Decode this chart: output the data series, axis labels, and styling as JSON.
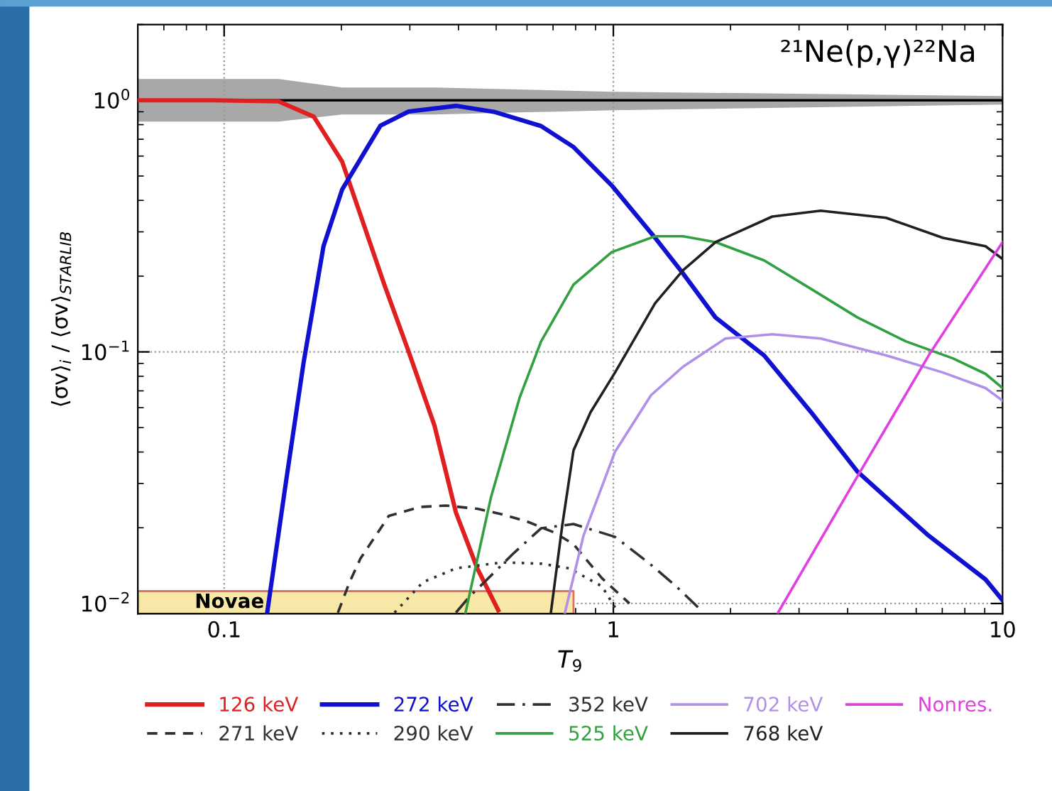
{
  "chart_data": {
    "type": "line",
    "title": "²¹Ne(p,γ)²²Na",
    "xlabel": "T$_{9}$",
    "ylabel": "⟨σv⟩$_{i}$ / ⟨σv⟩$_{STARLIB}$",
    "log": "xy",
    "grid": true,
    "legend": "bottom",
    "line_style": "solid",
    "marker": "none",
    "xlim": [
      0.06,
      10
    ],
    "ylim": [
      0.0091,
      2
    ],
    "xticks": [
      0.1,
      1,
      10
    ],
    "yticks": [
      {
        "value": 0.01,
        "label": "10$^{−2}$"
      },
      {
        "value": 0.1,
        "label": "10$^{−1}$"
      },
      {
        "value": 1,
        "label": "10$^{0}$"
      }
    ],
    "series": [
      {
        "color": "#000000",
        "x": [
          0.06,
          0.138,
          0.201,
          0.347,
          1,
          10
        ],
        "values": [
          1,
          1,
          1,
          1,
          1,
          1
        ],
        "lower": [
          0.823,
          0.823,
          0.878,
          0.878,
          0.913,
          0.962
        ],
        "upper": [
          1.215,
          1.215,
          1.124,
          1.124,
          1.081,
          1.04
        ]
      },
      {
        "type": "area",
        "name": "Novae",
        "color": "#f8e8a8",
        "x": [
          0.06,
          0.79
        ],
        "values": [
          0.0112,
          0.0112
        ]
      },
      {
        "name": "126 keV",
        "color": "#e02020",
        "x": [
          0.06,
          0.094,
          0.138,
          0.17,
          0.201,
          0.224,
          0.258,
          0.298,
          0.347,
          0.394,
          0.447,
          0.506
        ],
        "values": [
          1,
          1,
          0.99,
          0.86,
          0.57,
          0.35,
          0.185,
          0.1,
          0.051,
          0.023,
          0.0138,
          0.0094
        ]
      },
      {
        "name": "271 keV",
        "color": "#303030",
        "line_style": "dashed",
        "x": [
          0.196,
          0.21,
          0.224,
          0.265,
          0.319,
          0.371,
          0.447,
          0.519,
          0.599,
          0.708,
          0.79,
          0.935,
          1.1
        ],
        "values": [
          0.0092,
          0.01215,
          0.0151,
          0.0223,
          0.0242,
          0.0245,
          0.0238,
          0.0226,
          0.0212,
          0.0191,
          0.0172,
          0.0126,
          0.01
        ]
      },
      {
        "name": "272 keV",
        "color": "#1010d0",
        "x": [
          0.129,
          0.144,
          0.16,
          0.18,
          0.201,
          0.252,
          0.298,
          0.394,
          0.493,
          0.652,
          0.79,
          0.99,
          1.28,
          1.51,
          1.83,
          2.44,
          3.22,
          4.24,
          6.46,
          9.04,
          10
        ],
        "values": [
          0.0092,
          0.0301,
          0.0907,
          0.263,
          0.442,
          0.792,
          0.902,
          0.95,
          0.9,
          0.79,
          0.652,
          0.459,
          0.284,
          0.205,
          0.137,
          0.0968,
          0.0576,
          0.0334,
          0.0186,
          0.01247,
          0.0103
        ]
      },
      {
        "name": "290 keV",
        "color": "#303030",
        "line_style": "dotted",
        "x": [
          0.274,
          0.324,
          0.394,
          0.519,
          0.652,
          0.77,
          0.935,
          1.02
        ],
        "values": [
          0.0092,
          0.01215,
          0.0138,
          0.01457,
          0.0144,
          0.0138,
          0.0117,
          0.0094
        ]
      },
      {
        "name": "352 keV",
        "color": "#303030",
        "line_style": "dashdot",
        "x": [
          0.394,
          0.428,
          0.466,
          0.551,
          0.652,
          0.79,
          1.01,
          1.24,
          1.45,
          1.68
        ],
        "values": [
          0.0092,
          0.0107,
          0.01215,
          0.0157,
          0.0199,
          0.0207,
          0.0184,
          0.0144,
          0.0117,
          0.0094
        ]
      },
      {
        "name": "525 keV",
        "color": "#30a040",
        "x": [
          0.417,
          0.485,
          0.574,
          0.652,
          0.79,
          0.99,
          1.28,
          1.51,
          1.83,
          2.44,
          3.22,
          4.24,
          5.65,
          7.45,
          9.04,
          10
        ],
        "values": [
          0.0092,
          0.0265,
          0.0656,
          0.11,
          0.185,
          0.249,
          0.288,
          0.288,
          0.273,
          0.231,
          0.178,
          0.137,
          0.11,
          0.0943,
          0.0818,
          0.0718
        ]
      },
      {
        "name": "702 keV",
        "color": "#b090e8",
        "x": [
          0.751,
          0.838,
          1.01,
          1.25,
          1.51,
          1.94,
          2.56,
          3.41,
          5.02,
          7.03,
          9.04,
          10
        ],
        "values": [
          0.0092,
          0.0186,
          0.0401,
          0.0673,
          0.0873,
          0.113,
          0.1175,
          0.113,
          0.0968,
          0.0828,
          0.0718,
          0.064
        ]
      },
      {
        "name": "768 keV",
        "color": "#202020",
        "x": [
          0.691,
          0.739,
          0.79,
          0.874,
          1.01,
          1.28,
          1.51,
          1.83,
          2.56,
          3.41,
          5.02,
          7.03,
          9.04,
          10
        ],
        "values": [
          0.0092,
          0.0204,
          0.0406,
          0.0576,
          0.0828,
          0.156,
          0.211,
          0.273,
          0.345,
          0.364,
          0.341,
          0.284,
          0.263,
          0.234
        ]
      },
      {
        "name": "Nonres.",
        "color": "#e040e0",
        "x": [
          2.65,
          4.14,
          6.46,
          10
        ],
        "values": [
          0.0092,
          0.0301,
          0.0968,
          0.273
        ]
      }
    ]
  }
}
